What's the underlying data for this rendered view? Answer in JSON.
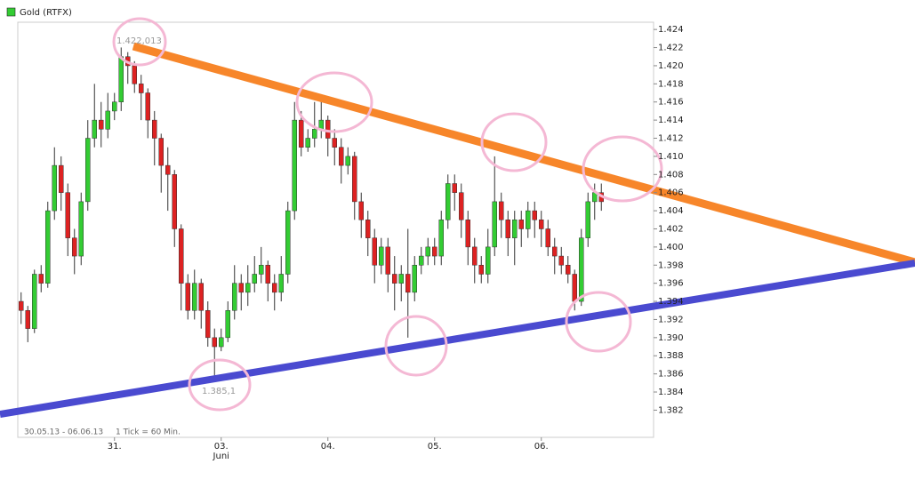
{
  "chart_data": {
    "type": "candlestick",
    "series_name": "Gold (RTFX)",
    "up_color": "#33cc33",
    "down_color": "#dd2222",
    "categories": [
      null,
      null,
      null,
      null,
      null,
      null,
      null,
      null,
      null,
      null,
      null,
      null,
      null,
      null,
      "31.",
      null,
      null,
      null,
      null,
      null,
      null,
      null,
      null,
      null,
      null,
      null,
      null,
      null,
      null,
      null,
      "03.",
      null,
      null,
      null,
      null,
      null,
      null,
      null,
      null,
      null,
      null,
      null,
      null,
      null,
      null,
      null,
      "04.",
      null,
      null,
      null,
      null,
      null,
      null,
      null,
      null,
      null,
      null,
      null,
      null,
      null,
      null,
      null,
      "05.",
      null,
      null,
      null,
      null,
      null,
      null,
      null,
      null,
      null,
      null,
      null,
      null,
      null,
      null,
      null,
      "06.",
      null,
      null,
      null,
      null,
      null,
      null,
      null,
      null,
      null
    ],
    "open": [
      1394,
      1393,
      1391,
      1397,
      1396,
      1404,
      1409,
      1406,
      1401,
      1399,
      1405,
      1412,
      1414,
      1413,
      1415,
      1416,
      1421,
      1420,
      1418,
      1417,
      1414,
      1412,
      1409,
      1408,
      1402,
      1396,
      1393,
      1396,
      1393,
      1390,
      1389,
      1390,
      1393,
      1396,
      1395,
      1396,
      1397,
      1398,
      1396,
      1395,
      1397,
      1404,
      1414,
      1411,
      1412,
      1413,
      1414,
      1412,
      1411,
      1409,
      1410,
      1405,
      1403,
      1401,
      1398,
      1400,
      1397,
      1396,
      1397,
      1395,
      1398,
      1399,
      1400,
      1399,
      1403,
      1407,
      1406,
      1403,
      1400,
      1398,
      1397,
      1400,
      1405,
      1403,
      1401,
      1403,
      1402,
      1404,
      1403,
      1402,
      1400,
      1399,
      1398,
      1397,
      1394,
      1401,
      1405,
      1406
    ],
    "high": [
      1395,
      1393.5,
      1397.5,
      1398,
      1405,
      1411,
      1410,
      1407,
      1402,
      1406,
      1414,
      1418,
      1416,
      1417,
      1417,
      1422.013,
      1421.5,
      1420.5,
      1419,
      1417.5,
      1415,
      1412.5,
      1411,
      1408.5,
      1402.5,
      1397,
      1397.5,
      1396.5,
      1394,
      1391,
      1391,
      1394,
      1398,
      1397,
      1398,
      1399,
      1400,
      1398.5,
      1397,
      1399,
      1405,
      1416,
      1415,
      1413,
      1416,
      1416,
      1414.5,
      1413,
      1412,
      1411,
      1410.5,
      1406,
      1404,
      1402,
      1401,
      1401,
      1399,
      1398,
      1402,
      1399,
      1400,
      1401,
      1401,
      1404,
      1408,
      1408,
      1407,
      1404,
      1401,
      1399,
      1402,
      1410,
      1406,
      1404,
      1404,
      1404,
      1405,
      1405,
      1404,
      1403,
      1401,
      1400,
      1399,
      1397.5,
      1402,
      1406,
      1407,
      1407
    ],
    "low": [
      1391.5,
      1389.5,
      1390.5,
      1395,
      1395.5,
      1403,
      1404,
      1399,
      1397,
      1398,
      1404,
      1411,
      1411,
      1412,
      1414,
      1415,
      1418,
      1417,
      1414,
      1412,
      1409,
      1406,
      1404,
      1400,
      1393,
      1392,
      1392,
      1391,
      1389,
      1385.1,
      1388.5,
      1389.5,
      1392,
      1393,
      1393.5,
      1395,
      1396,
      1394,
      1393,
      1394,
      1396,
      1403,
      1410,
      1410.5,
      1411,
      1412,
      1410,
      1409,
      1407,
      1408,
      1403,
      1401,
      1399,
      1396,
      1397,
      1395,
      1393,
      1394,
      1390,
      1394,
      1397,
      1398,
      1398,
      1398,
      1402,
      1404,
      1401,
      1398,
      1396,
      1396,
      1396,
      1399,
      1401,
      1399,
      1398,
      1400,
      1401,
      1401,
      1400,
      1399,
      1397,
      1397,
      1396,
      1393,
      1393.5,
      1400,
      1403,
      1404
    ],
    "close": [
      1393,
      1391,
      1397,
      1396,
      1404,
      1409,
      1406,
      1401,
      1399,
      1405,
      1412,
      1414,
      1413,
      1415,
      1416,
      1421,
      1420,
      1418,
      1417,
      1414,
      1412,
      1409,
      1408,
      1402,
      1396,
      1393,
      1396,
      1393,
      1390,
      1389,
      1390,
      1393,
      1396,
      1395,
      1396,
      1397,
      1398,
      1396,
      1395,
      1397,
      1404,
      1414,
      1411,
      1412,
      1413,
      1414,
      1412,
      1411,
      1409,
      1410,
      1405,
      1403,
      1401,
      1398,
      1400,
      1397,
      1396,
      1397,
      1395,
      1398,
      1399,
      1400,
      1399,
      1403,
      1407,
      1406,
      1403,
      1400,
      1398,
      1397,
      1400,
      1405,
      1403,
      1401,
      1403,
      1402,
      1404,
      1403,
      1402,
      1400,
      1399,
      1398,
      1397,
      1394,
      1401,
      1405,
      1406,
      1405
    ],
    "ylim": [
      1379,
      1424.8
    ],
    "yticks": [
      {
        "value": 1382,
        "label": "1.382"
      },
      {
        "value": 1384,
        "label": "1.384"
      },
      {
        "value": 1386,
        "label": "1.386"
      },
      {
        "value": 1388,
        "label": "1.388"
      },
      {
        "value": 1390,
        "label": "1.390"
      },
      {
        "value": 1392,
        "label": "1.392"
      },
      {
        "value": 1394,
        "label": "1.394"
      },
      {
        "value": 1396,
        "label": "1.396"
      },
      {
        "value": 1398,
        "label": "1.398"
      },
      {
        "value": 1400,
        "label": "1.400"
      },
      {
        "value": 1402,
        "label": "1.402"
      },
      {
        "value": 1404,
        "label": "1.404"
      },
      {
        "value": 1406,
        "label": "1.406"
      },
      {
        "value": 1408,
        "label": "1.408"
      },
      {
        "value": 1410,
        "label": "1.410"
      },
      {
        "value": 1412,
        "label": "1.412"
      },
      {
        "value": 1414,
        "label": "1.414"
      },
      {
        "value": 1416,
        "label": "1.416"
      },
      {
        "value": 1418,
        "label": "1.418"
      },
      {
        "value": 1420,
        "label": "1.420"
      },
      {
        "value": 1422,
        "label": "1.422"
      },
      {
        "value": 1424,
        "label": "1.424"
      }
    ],
    "month_label": "Juni",
    "annotations": [
      "1.422,013",
      "1.385,1"
    ],
    "date_range": "30.05.13 - 06.06.13",
    "tick_info": "1 Tick = 60 Min."
  }
}
